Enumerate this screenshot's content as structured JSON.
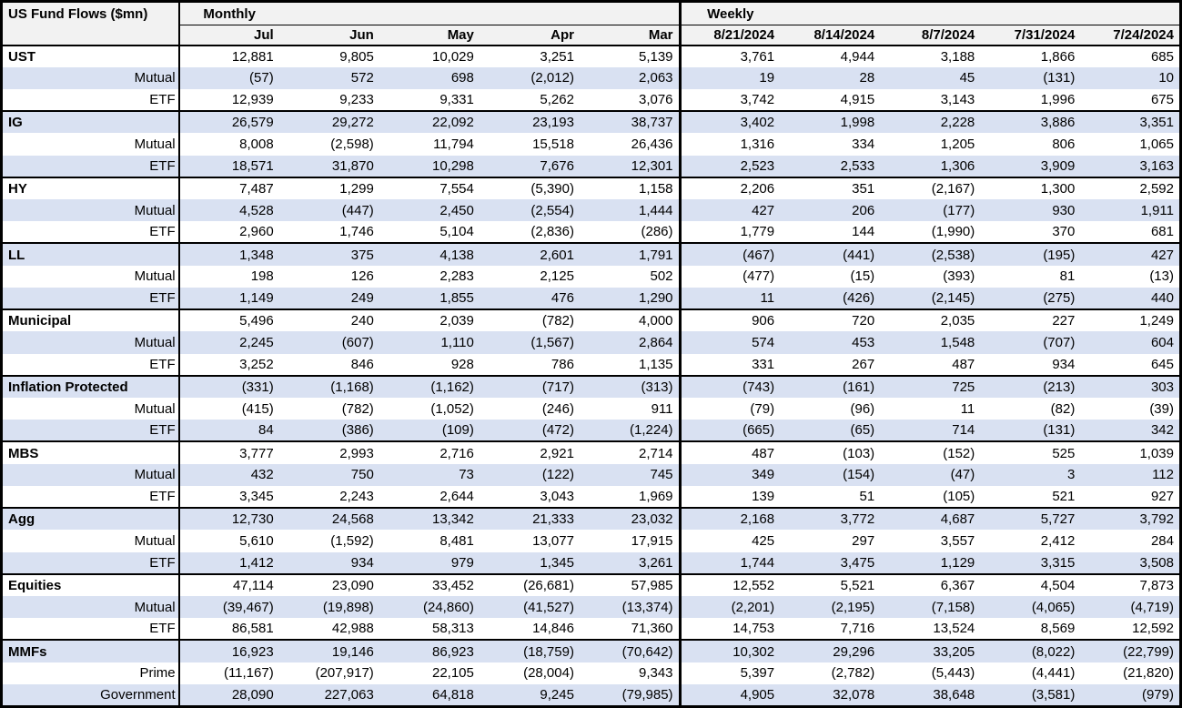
{
  "colors": {
    "row_stripe": "#d9e1f2",
    "header_bg": "#f2f2f2",
    "border": "#000000",
    "text": "#000000"
  },
  "chart_data": {
    "type": "table",
    "title": "US Fund Flows ($mn)",
    "column_groups": [
      {
        "label": "Monthly",
        "columns": [
          "Jul",
          "Jun",
          "May",
          "Apr",
          "Mar"
        ]
      },
      {
        "label": "Weekly",
        "columns": [
          "8/21/2024",
          "8/14/2024",
          "8/7/2024",
          "7/31/2024",
          "7/24/2024"
        ]
      }
    ],
    "groups": [
      {
        "name": "UST",
        "rows": [
          {
            "label": "UST",
            "values": [
              "12,881",
              "9,805",
              "10,029",
              "3,251",
              "5,139",
              "3,761",
              "4,944",
              "3,188",
              "1,866",
              "685"
            ]
          },
          {
            "label": "Mutual",
            "values": [
              "(57)",
              "572",
              "698",
              "(2,012)",
              "2,063",
              "19",
              "28",
              "45",
              "(131)",
              "10"
            ]
          },
          {
            "label": "ETF",
            "values": [
              "12,939",
              "9,233",
              "9,331",
              "5,262",
              "3,076",
              "3,742",
              "4,915",
              "3,143",
              "1,996",
              "675"
            ]
          }
        ]
      },
      {
        "name": "IG",
        "rows": [
          {
            "label": "IG",
            "values": [
              "26,579",
              "29,272",
              "22,092",
              "23,193",
              "38,737",
              "3,402",
              "1,998",
              "2,228",
              "3,886",
              "3,351"
            ]
          },
          {
            "label": "Mutual",
            "values": [
              "8,008",
              "(2,598)",
              "11,794",
              "15,518",
              "26,436",
              "1,316",
              "334",
              "1,205",
              "806",
              "1,065"
            ]
          },
          {
            "label": "ETF",
            "values": [
              "18,571",
              "31,870",
              "10,298",
              "7,676",
              "12,301",
              "2,523",
              "2,533",
              "1,306",
              "3,909",
              "3,163"
            ]
          }
        ]
      },
      {
        "name": "HY",
        "rows": [
          {
            "label": "HY",
            "values": [
              "7,487",
              "1,299",
              "7,554",
              "(5,390)",
              "1,158",
              "2,206",
              "351",
              "(2,167)",
              "1,300",
              "2,592"
            ]
          },
          {
            "label": "Mutual",
            "values": [
              "4,528",
              "(447)",
              "2,450",
              "(2,554)",
              "1,444",
              "427",
              "206",
              "(177)",
              "930",
              "1,911"
            ]
          },
          {
            "label": "ETF",
            "values": [
              "2,960",
              "1,746",
              "5,104",
              "(2,836)",
              "(286)",
              "1,779",
              "144",
              "(1,990)",
              "370",
              "681"
            ]
          }
        ]
      },
      {
        "name": "LL",
        "rows": [
          {
            "label": "LL",
            "values": [
              "1,348",
              "375",
              "4,138",
              "2,601",
              "1,791",
              "(467)",
              "(441)",
              "(2,538)",
              "(195)",
              "427"
            ]
          },
          {
            "label": "Mutual",
            "values": [
              "198",
              "126",
              "2,283",
              "2,125",
              "502",
              "(477)",
              "(15)",
              "(393)",
              "81",
              "(13)"
            ]
          },
          {
            "label": "ETF",
            "values": [
              "1,149",
              "249",
              "1,855",
              "476",
              "1,290",
              "11",
              "(426)",
              "(2,145)",
              "(275)",
              "440"
            ]
          }
        ]
      },
      {
        "name": "Municipal",
        "rows": [
          {
            "label": "Municipal",
            "values": [
              "5,496",
              "240",
              "2,039",
              "(782)",
              "4,000",
              "906",
              "720",
              "2,035",
              "227",
              "1,249"
            ]
          },
          {
            "label": "Mutual",
            "values": [
              "2,245",
              "(607)",
              "1,110",
              "(1,567)",
              "2,864",
              "574",
              "453",
              "1,548",
              "(707)",
              "604"
            ]
          },
          {
            "label": "ETF",
            "values": [
              "3,252",
              "846",
              "928",
              "786",
              "1,135",
              "331",
              "267",
              "487",
              "934",
              "645"
            ]
          }
        ]
      },
      {
        "name": "Inflation Protected",
        "rows": [
          {
            "label": "Inflation Protected",
            "values": [
              "(331)",
              "(1,168)",
              "(1,162)",
              "(717)",
              "(313)",
              "(743)",
              "(161)",
              "725",
              "(213)",
              "303"
            ]
          },
          {
            "label": "Mutual",
            "values": [
              "(415)",
              "(782)",
              "(1,052)",
              "(246)",
              "911",
              "(79)",
              "(96)",
              "11",
              "(82)",
              "(39)"
            ]
          },
          {
            "label": "ETF",
            "values": [
              "84",
              "(386)",
              "(109)",
              "(472)",
              "(1,224)",
              "(665)",
              "(65)",
              "714",
              "(131)",
              "342"
            ]
          }
        ]
      },
      {
        "name": "MBS",
        "rows": [
          {
            "label": "MBS",
            "values": [
              "3,777",
              "2,993",
              "2,716",
              "2,921",
              "2,714",
              "487",
              "(103)",
              "(152)",
              "525",
              "1,039"
            ]
          },
          {
            "label": "Mutual",
            "values": [
              "432",
              "750",
              "73",
              "(122)",
              "745",
              "349",
              "(154)",
              "(47)",
              "3",
              "112"
            ]
          },
          {
            "label": "ETF",
            "values": [
              "3,345",
              "2,243",
              "2,644",
              "3,043",
              "1,969",
              "139",
              "51",
              "(105)",
              "521",
              "927"
            ]
          }
        ]
      },
      {
        "name": "Agg",
        "rows": [
          {
            "label": "Agg",
            "values": [
              "12,730",
              "24,568",
              "13,342",
              "21,333",
              "23,032",
              "2,168",
              "3,772",
              "4,687",
              "5,727",
              "3,792"
            ]
          },
          {
            "label": "Mutual",
            "values": [
              "5,610",
              "(1,592)",
              "8,481",
              "13,077",
              "17,915",
              "425",
              "297",
              "3,557",
              "2,412",
              "284"
            ]
          },
          {
            "label": "ETF",
            "values": [
              "1,412",
              "934",
              "979",
              "1,345",
              "3,261",
              "1,744",
              "3,475",
              "1,129",
              "3,315",
              "3,508"
            ]
          }
        ]
      },
      {
        "name": "Equities",
        "rows": [
          {
            "label": "Equities",
            "values": [
              "47,114",
              "23,090",
              "33,452",
              "(26,681)",
              "57,985",
              "12,552",
              "5,521",
              "6,367",
              "4,504",
              "7,873"
            ]
          },
          {
            "label": "Mutual",
            "values": [
              "(39,467)",
              "(19,898)",
              "(24,860)",
              "(41,527)",
              "(13,374)",
              "(2,201)",
              "(2,195)",
              "(7,158)",
              "(4,065)",
              "(4,719)"
            ]
          },
          {
            "label": "ETF",
            "values": [
              "86,581",
              "42,988",
              "58,313",
              "14,846",
              "71,360",
              "14,753",
              "7,716",
              "13,524",
              "8,569",
              "12,592"
            ]
          }
        ]
      },
      {
        "name": "MMFs",
        "rows": [
          {
            "label": "MMFs",
            "values": [
              "16,923",
              "19,146",
              "86,923",
              "(18,759)",
              "(70,642)",
              "10,302",
              "29,296",
              "33,205",
              "(8,022)",
              "(22,799)"
            ]
          },
          {
            "label": "Prime",
            "values": [
              "(11,167)",
              "(207,917)",
              "22,105",
              "(28,004)",
              "9,343",
              "5,397",
              "(2,782)",
              "(5,443)",
              "(4,441)",
              "(21,820)"
            ]
          },
          {
            "label": "Government",
            "values": [
              "28,090",
              "227,063",
              "64,818",
              "9,245",
              "(79,985)",
              "4,905",
              "32,078",
              "38,648",
              "(3,581)",
              "(979)"
            ]
          }
        ]
      }
    ]
  }
}
